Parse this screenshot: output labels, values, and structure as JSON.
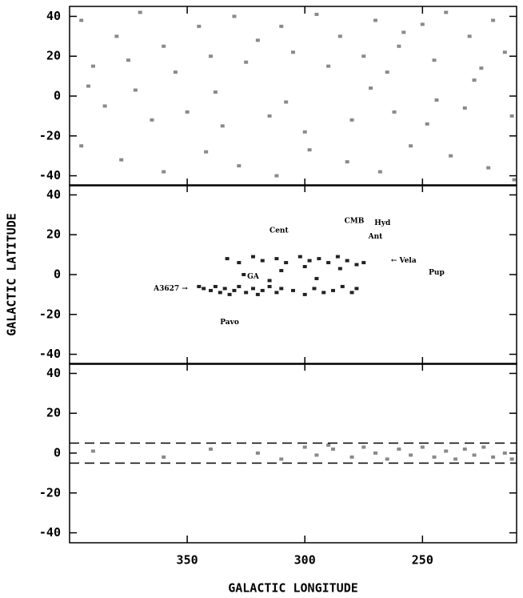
{
  "chart_data": [
    {
      "type": "scatter",
      "xlim": [
        400,
        210
      ],
      "ylim": [
        -45,
        45
      ],
      "yticks": [
        40,
        20,
        0,
        -20,
        -40
      ],
      "series": [
        {
          "color": "#8a8a8a",
          "x": [
            395,
            380,
            370,
            360,
            345,
            330,
            320,
            310,
            295,
            285,
            270,
            260,
            250,
            240,
            230,
            220,
            215,
            390,
            375,
            355,
            340,
            325,
            305,
            290,
            275,
            265,
            245,
            225,
            385,
            365,
            350,
            335,
            315,
            300,
            280,
            262,
            248,
            232,
            212,
            395,
            378,
            360,
            342,
            328,
            312,
            298,
            282,
            268,
            255,
            238,
            222,
            211,
            392,
            372,
            338,
            308,
            272,
            244,
            228,
            258
          ],
          "y": [
            38,
            30,
            42,
            25,
            35,
            40,
            28,
            35,
            41,
            30,
            38,
            25,
            36,
            42,
            30,
            38,
            22,
            15,
            18,
            12,
            20,
            17,
            22,
            15,
            20,
            12,
            18,
            14,
            -5,
            -12,
            -8,
            -15,
            -10,
            -18,
            -12,
            -8,
            -14,
            -6,
            -10,
            -25,
            -32,
            -38,
            -28,
            -35,
            -40,
            -27,
            -33,
            -38,
            -25,
            -30,
            -36,
            -42,
            5,
            3,
            2,
            -3,
            4,
            -2,
            8,
            32
          ]
        }
      ]
    },
    {
      "type": "scatter",
      "xlim": [
        400,
        210
      ],
      "ylim": [
        -45,
        45
      ],
      "yticks": [
        40,
        20,
        0,
        -20,
        -40
      ],
      "ylabel": "GALACTIC LATITUDE",
      "series": [
        {
          "color": "#222222",
          "x": [
            340,
            338,
            336,
            334,
            332,
            330,
            328,
            325,
            322,
            320,
            318,
            315,
            312,
            310,
            305,
            300,
            296,
            292,
            288,
            284,
            280,
            278,
            333,
            328,
            322,
            318,
            312,
            308,
            302,
            298,
            294,
            290,
            286,
            282,
            278,
            275,
            345,
            343,
            326,
            310,
            295,
            285,
            300,
            315
          ],
          "y": [
            -8,
            -6,
            -9,
            -7,
            -10,
            -8,
            -6,
            -9,
            -7,
            -10,
            -8,
            -6,
            -9,
            -7,
            -8,
            -10,
            -7,
            -9,
            -8,
            -6,
            -9,
            -7,
            8,
            6,
            9,
            7,
            8,
            6,
            9,
            7,
            8,
            6,
            9,
            7,
            5,
            6,
            -6,
            -7,
            0,
            2,
            -2,
            3,
            4,
            -3
          ]
        }
      ],
      "annotations": [
        {
          "text": "Cent",
          "x": 311,
          "y": 22
        },
        {
          "text": "CMB",
          "x": 279,
          "y": 27
        },
        {
          "text": "Hyd",
          "x": 267,
          "y": 26
        },
        {
          "text": "Ant",
          "x": 270,
          "y": 19
        },
        {
          "text": "← Vela",
          "x": 258,
          "y": 7
        },
        {
          "text": "Pup",
          "x": 244,
          "y": 1
        },
        {
          "text": "A3627 →",
          "x": 357,
          "y": -7
        },
        {
          "text": "GA",
          "x": 322,
          "y": -1
        },
        {
          "text": "Pavo",
          "x": 332,
          "y": -24
        }
      ]
    },
    {
      "type": "scatter",
      "xlim": [
        400,
        210
      ],
      "ylim": [
        -45,
        45
      ],
      "yticks": [
        40,
        20,
        0,
        -20,
        -40
      ],
      "xticks": [
        350,
        300,
        250
      ],
      "xlabel": "GALACTIC LONGITUDE",
      "hlines": [
        5,
        -5
      ],
      "series": [
        {
          "color": "#8a8a8a",
          "x": [
            390,
            360,
            340,
            320,
            310,
            300,
            295,
            288,
            280,
            275,
            270,
            265,
            260,
            255,
            250,
            245,
            240,
            236,
            232,
            228,
            224,
            220,
            215,
            212,
            290
          ],
          "y": [
            1,
            -2,
            2,
            0,
            -3,
            3,
            -1,
            2,
            -2,
            3,
            0,
            -3,
            2,
            -1,
            3,
            -2,
            1,
            -3,
            2,
            -1,
            3,
            -2,
            0,
            -3,
            4
          ]
        }
      ]
    }
  ]
}
